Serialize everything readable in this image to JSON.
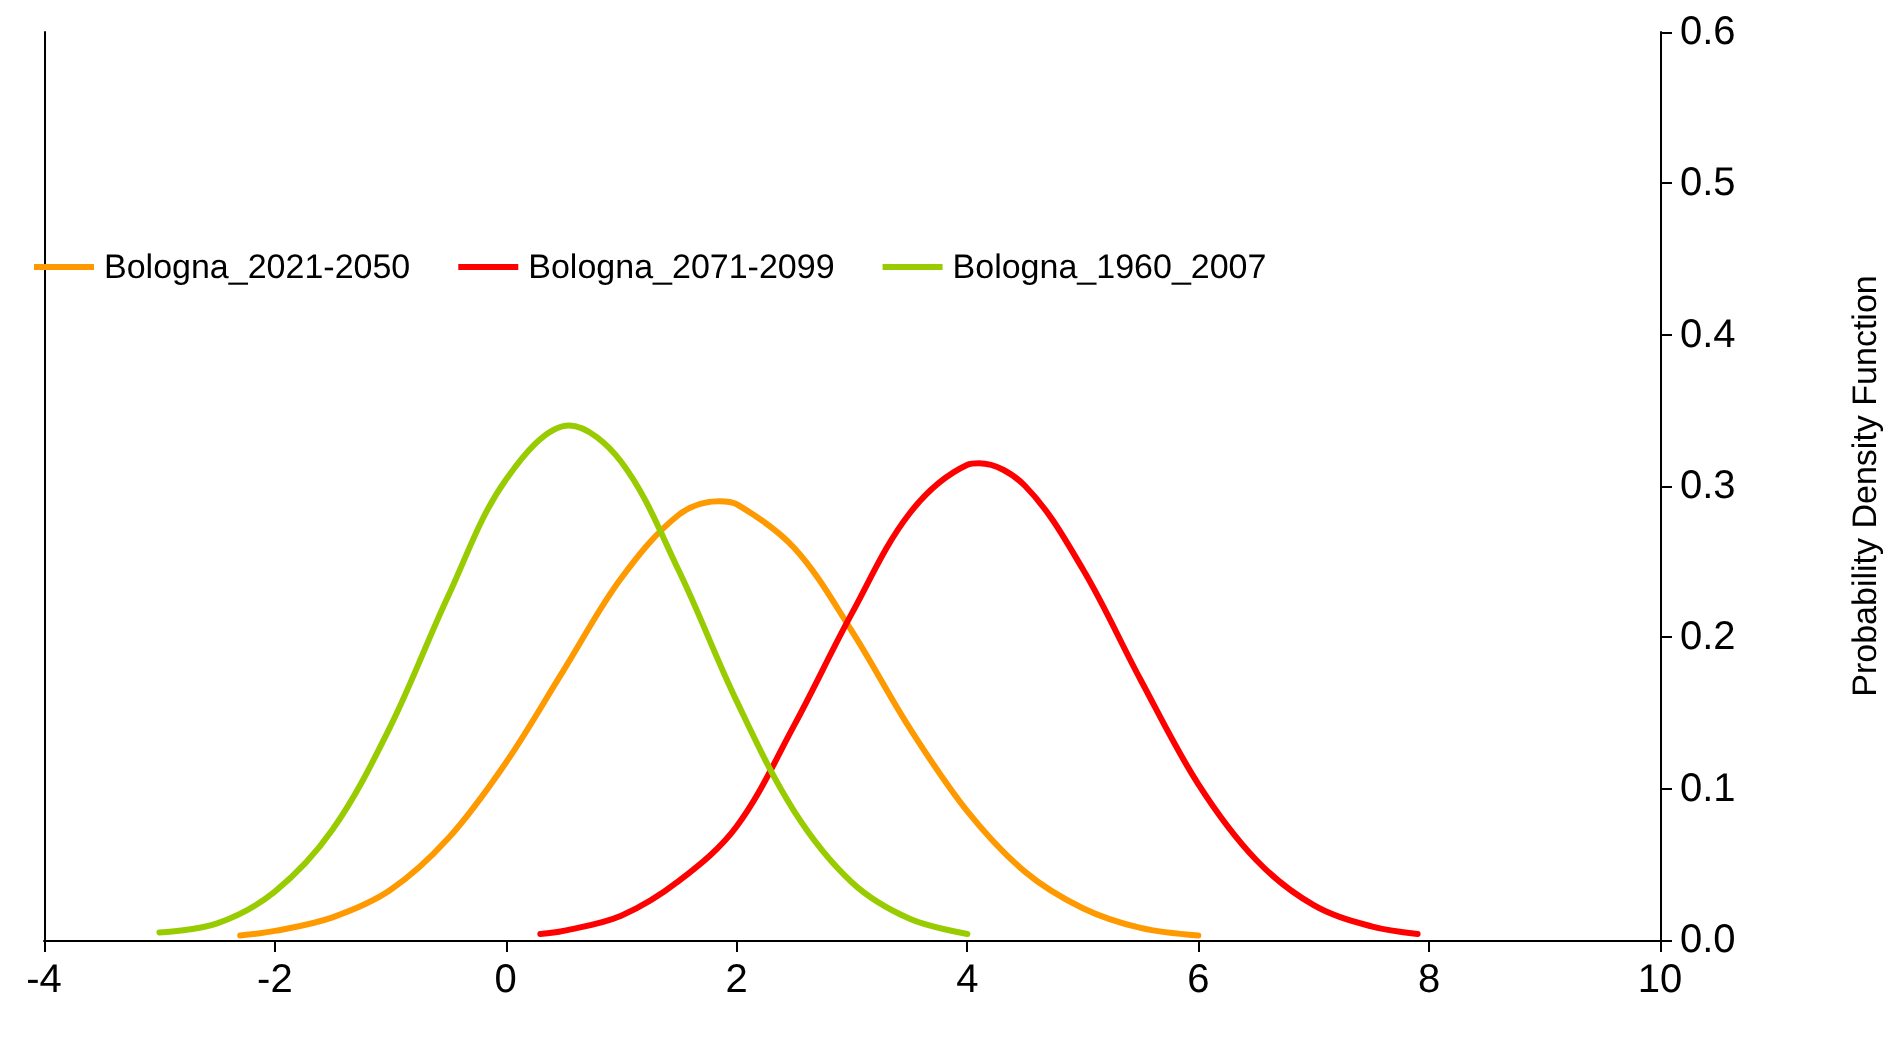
{
  "chart_data": {
    "type": "line",
    "ylabel": "Probability Density Function",
    "xlim": [
      -4,
      10
    ],
    "xticks": [
      -4,
      -2,
      0,
      2,
      4,
      6,
      8,
      10
    ],
    "ylim": [
      0,
      0.6
    ],
    "yticks": [
      {
        "value": 0,
        "label": "0.0"
      },
      {
        "value": 0.1,
        "label": "0.1"
      },
      {
        "value": 0.2,
        "label": "0.2"
      },
      {
        "value": 0.3,
        "label": "0.3"
      },
      {
        "value": 0.4,
        "label": "0.4"
      },
      {
        "value": 0.5,
        "label": "0.5"
      },
      {
        "value": 0.6,
        "label": "0.6"
      }
    ],
    "grid": false,
    "legend": "top left",
    "marker": "none",
    "line_style": "solid",
    "series": [
      {
        "name": "Bologna_2021-2050",
        "color": "#ff9900",
        "x": [
          -2.3,
          -2,
          -1.5,
          -1,
          -0.5,
          0,
          0.5,
          1,
          1.5,
          1.85,
          2,
          2.5,
          3,
          3.5,
          4,
          4.5,
          5,
          5.5,
          6
        ],
        "values": [
          0.003,
          0.006,
          0.015,
          0.033,
          0.067,
          0.117,
          0.178,
          0.239,
          0.281,
          0.29,
          0.288,
          0.259,
          0.204,
          0.14,
          0.085,
          0.045,
          0.021,
          0.008,
          0.003
        ]
      },
      {
        "name": "Bologna_2071-2099",
        "color": "#ff0000",
        "x": [
          0.3,
          0.5,
          1,
          1.5,
          2,
          2.5,
          3,
          3.5,
          4,
          4.1,
          4.5,
          5,
          5.5,
          6,
          6.5,
          7,
          7.5,
          7.9
        ],
        "values": [
          0.004,
          0.006,
          0.016,
          0.039,
          0.075,
          0.142,
          0.216,
          0.282,
          0.314,
          0.315,
          0.3,
          0.245,
          0.172,
          0.103,
          0.053,
          0.023,
          0.009,
          0.004
        ]
      },
      {
        "name": "Bologna_1960_2007",
        "color": "#99cc00",
        "x": [
          -3,
          -2.5,
          -2,
          -1.5,
          -1,
          -0.5,
          0,
          0.55,
          1,
          1.5,
          2,
          2.5,
          3,
          3.5,
          4
        ],
        "values": [
          0.005,
          0.011,
          0.032,
          0.073,
          0.141,
          0.227,
          0.304,
          0.34,
          0.316,
          0.244,
          0.158,
          0.085,
          0.038,
          0.014,
          0.004
        ]
      }
    ]
  }
}
